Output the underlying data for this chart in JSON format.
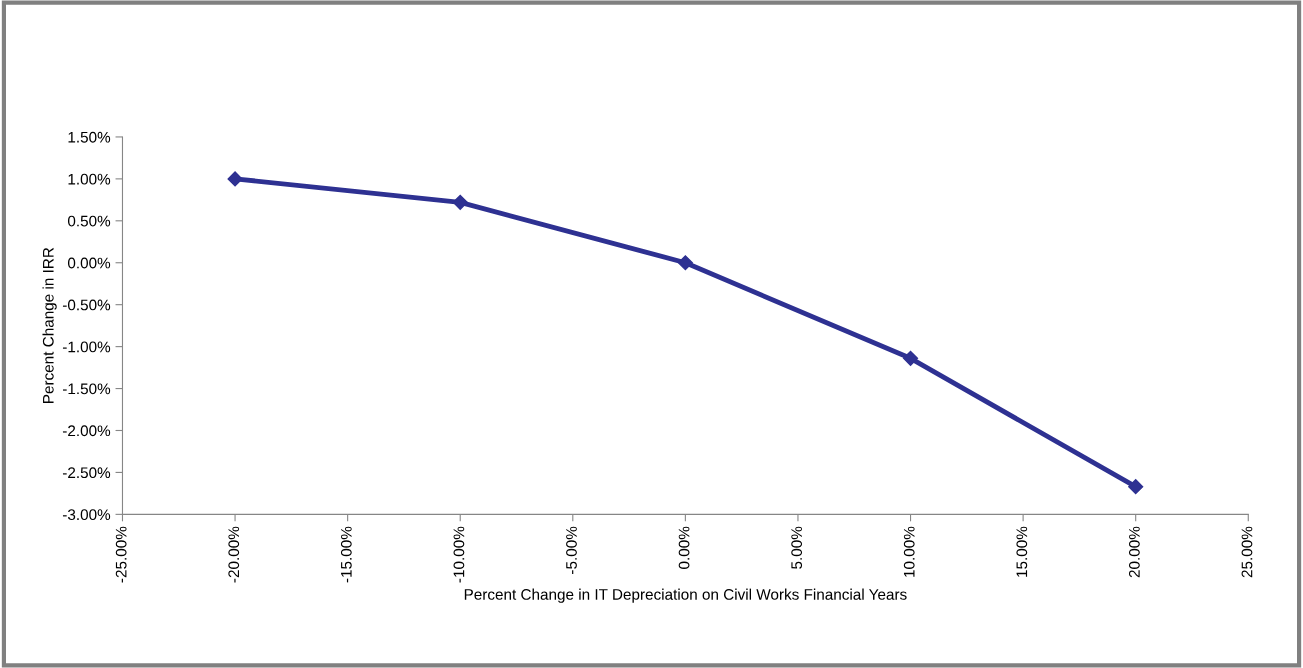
{
  "chart_data": {
    "type": "line",
    "xlabel": "Percent Change in IT Depreciation on Civil Works Financial Years",
    "ylabel": "Percent Change in IRR",
    "x": [
      -20,
      -10,
      0,
      10,
      20
    ],
    "series": [
      {
        "color": "#2e3192",
        "values": [
          1.0,
          0.72,
          0.0,
          -1.14,
          -2.67
        ]
      }
    ],
    "marker": "diamond",
    "line_style": "solid",
    "grid": false,
    "legend": false,
    "xlim": [
      -25,
      25
    ],
    "ylim": [
      -3,
      1.5
    ],
    "xticks": [
      {
        "value": -25,
        "label": "-25.00%"
      },
      {
        "value": -20,
        "label": "-20.00%"
      },
      {
        "value": -15,
        "label": "-15.00%"
      },
      {
        "value": -10,
        "label": "-10.00%"
      },
      {
        "value": -5,
        "label": "-5.00%"
      },
      {
        "value": 0,
        "label": "0.00%"
      },
      {
        "value": 5,
        "label": "5.00%"
      },
      {
        "value": 10,
        "label": "10.00%"
      },
      {
        "value": 15,
        "label": "15.00%"
      },
      {
        "value": 20,
        "label": "20.00%"
      },
      {
        "value": 25,
        "label": "25.00%"
      }
    ],
    "yticks": [
      {
        "value": 1.5,
        "label": "1.50%"
      },
      {
        "value": 1,
        "label": "1.00%"
      },
      {
        "value": 0.5,
        "label": "0.50%"
      },
      {
        "value": 0,
        "label": "0.00%"
      },
      {
        "value": -0.5,
        "label": "-0.50%"
      },
      {
        "value": -1,
        "label": "-1.00%"
      },
      {
        "value": -1.5,
        "label": "-1.50%"
      },
      {
        "value": -2,
        "label": "-2.00%"
      },
      {
        "value": -2.5,
        "label": "-2.50%"
      },
      {
        "value": -3,
        "label": "-3.00%"
      }
    ]
  }
}
